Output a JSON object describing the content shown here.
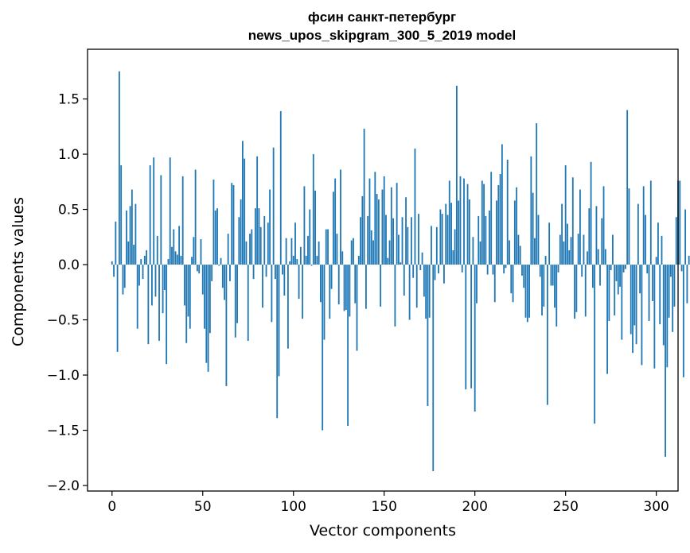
{
  "chart_data": {
    "type": "bar",
    "title": "фсин санкт-петербург",
    "subtitle": "news_upos_skipgram_300_5_2019 model",
    "xlabel": "Vector components",
    "ylabel": "Components values",
    "xlim": [
      -13.5,
      312
    ],
    "ylim": [
      -2.05,
      1.95
    ],
    "xticks": [
      0,
      50,
      100,
      150,
      200,
      250,
      300
    ],
    "yticks": [
      -2.0,
      -1.5,
      -1.0,
      -0.5,
      0.0,
      0.5,
      1.0,
      1.5
    ],
    "ytick_labels": [
      "−2.0",
      "−1.5",
      "−1.0",
      "−0.5",
      "0.0",
      "0.5",
      "1.0",
      "1.5"
    ],
    "grid": false,
    "bar_color": "#1f77b4",
    "values": [
      0.03,
      -0.11,
      0.39,
      -0.79,
      1.75,
      0.9,
      -0.27,
      -0.21,
      0.49,
      0.21,
      0.53,
      0.68,
      0.18,
      0.55,
      -0.58,
      -0.19,
      0.05,
      -0.13,
      0.08,
      0.13,
      -0.72,
      0.9,
      -0.37,
      0.97,
      -0.29,
      0.26,
      -0.69,
      0.81,
      -0.44,
      -0.23,
      -0.9,
      0.05,
      0.97,
      0.16,
      0.32,
      0.12,
      0.09,
      0.35,
      0.08,
      0.8,
      -0.37,
      -0.71,
      -0.47,
      -0.58,
      0.07,
      0.25,
      0.86,
      -0.06,
      -0.08,
      0.23,
      -0.27,
      -0.58,
      -0.89,
      -0.97,
      -0.62,
      -0.15,
      0.77,
      0.49,
      0.51,
      -0.01,
      0.06,
      -0.21,
      -0.32,
      -1.1,
      0.28,
      -0.15,
      0.74,
      0.72,
      -0.66,
      -0.53,
      0.43,
      0.59,
      1.12,
      0.96,
      0.21,
      -0.69,
      0.28,
      0.32,
      -0.13,
      0.51,
      0.98,
      0.51,
      0.34,
      -0.39,
      0.44,
      -0.11,
      0.38,
      0.68,
      -0.52,
      1.06,
      -0.13,
      -1.39,
      -1.01,
      1.39,
      -0.09,
      -0.28,
      0.24,
      -0.76,
      0.03,
      0.24,
      0.08,
      0.38,
      0.05,
      -0.31,
      0.16,
      -0.49,
      0.71,
      0.08,
      0.26,
      0.5,
      -0.01,
      1.0,
      0.67,
      0.08,
      0.21,
      -0.34,
      -1.5,
      -0.68,
      0.32,
      0.32,
      -0.49,
      -0.22,
      0.66,
      0.78,
      0.28,
      -0.36,
      0.86,
      0.12,
      -0.42,
      -0.41,
      -1.46,
      -0.47,
      0.22,
      0.24,
      -0.35,
      -0.78,
      0.08,
      0.43,
      0.62,
      1.23,
      -0.4,
      0.44,
      0.78,
      0.31,
      0.22,
      0.84,
      0.64,
      0.59,
      -0.38,
      0.68,
      0.8,
      0.45,
      0.06,
      0.22,
      0.7,
      0.42,
      -0.56,
      0.74,
      0.27,
      0.02,
      0.43,
      -0.28,
      0.61,
      0.34,
      -0.5,
      0.43,
      -0.12,
      1.05,
      -0.39,
      0.46,
      -0.05,
      0.11,
      -0.29,
      -0.49,
      -1.28,
      -0.48,
      0.35,
      -1.87,
      -0.14,
      0.34,
      -0.08,
      0.5,
      0.46,
      -0.17,
      0.55,
      0.45,
      0.76,
      0.56,
      0.13,
      0.32,
      1.62,
      0.58,
      0.8,
      -0.07,
      0.78,
      -1.13,
      0.73,
      0.59,
      -1.12,
      0.25,
      -1.33,
      -0.35,
      0.44,
      0.21,
      0.76,
      0.73,
      0.44,
      -0.09,
      0.49,
      0.84,
      -0.09,
      -0.34,
      0.58,
      0.72,
      0.82,
      1.09,
      -0.08,
      -0.03,
      0.95,
      0.22,
      -0.26,
      -0.34,
      0.58,
      0.7,
      0.27,
      0.17,
      -0.1,
      -0.21,
      -0.48,
      -0.52,
      -0.48,
      0.98,
      0.65,
      0.24,
      1.28,
      0.45,
      -0.11,
      -0.46,
      -0.38,
      0.08,
      -1.27,
      0.38,
      -0.19,
      -0.19,
      -0.39,
      -0.56,
      -0.07,
      0.27,
      0.55,
      0.21,
      0.9,
      0.37,
      0.13,
      0.25,
      0.79,
      -0.49,
      -0.43,
      0.28,
      0.68,
      -0.11,
      0.27,
      -0.47,
      0.12,
      0.51,
      0.93,
      -0.21,
      -1.44,
      0.53,
      0.14,
      -0.19,
      0.42,
      0.71,
      0.14,
      -0.99,
      -0.51,
      -0.05,
      0.27,
      -0.46,
      -0.15,
      -0.27,
      -0.2,
      -0.68,
      -0.07,
      -0.04,
      1.4,
      0.69,
      -0.63,
      -0.8,
      -0.55,
      -0.72,
      0.55,
      -0.26,
      -0.91,
      0.71,
      0.45,
      -0.08,
      -0.51,
      0.76,
      -0.33,
      -0.94,
      0.07,
      0.38,
      -0.54,
      0.26,
      -0.73,
      -1.74,
      -0.93,
      -0.48,
      -0.11,
      -0.61,
      -0.38,
      0.43,
      0.76,
      0.76,
      -0.06,
      -1.02,
      0.5,
      -0.35,
      0.08
    ]
  }
}
